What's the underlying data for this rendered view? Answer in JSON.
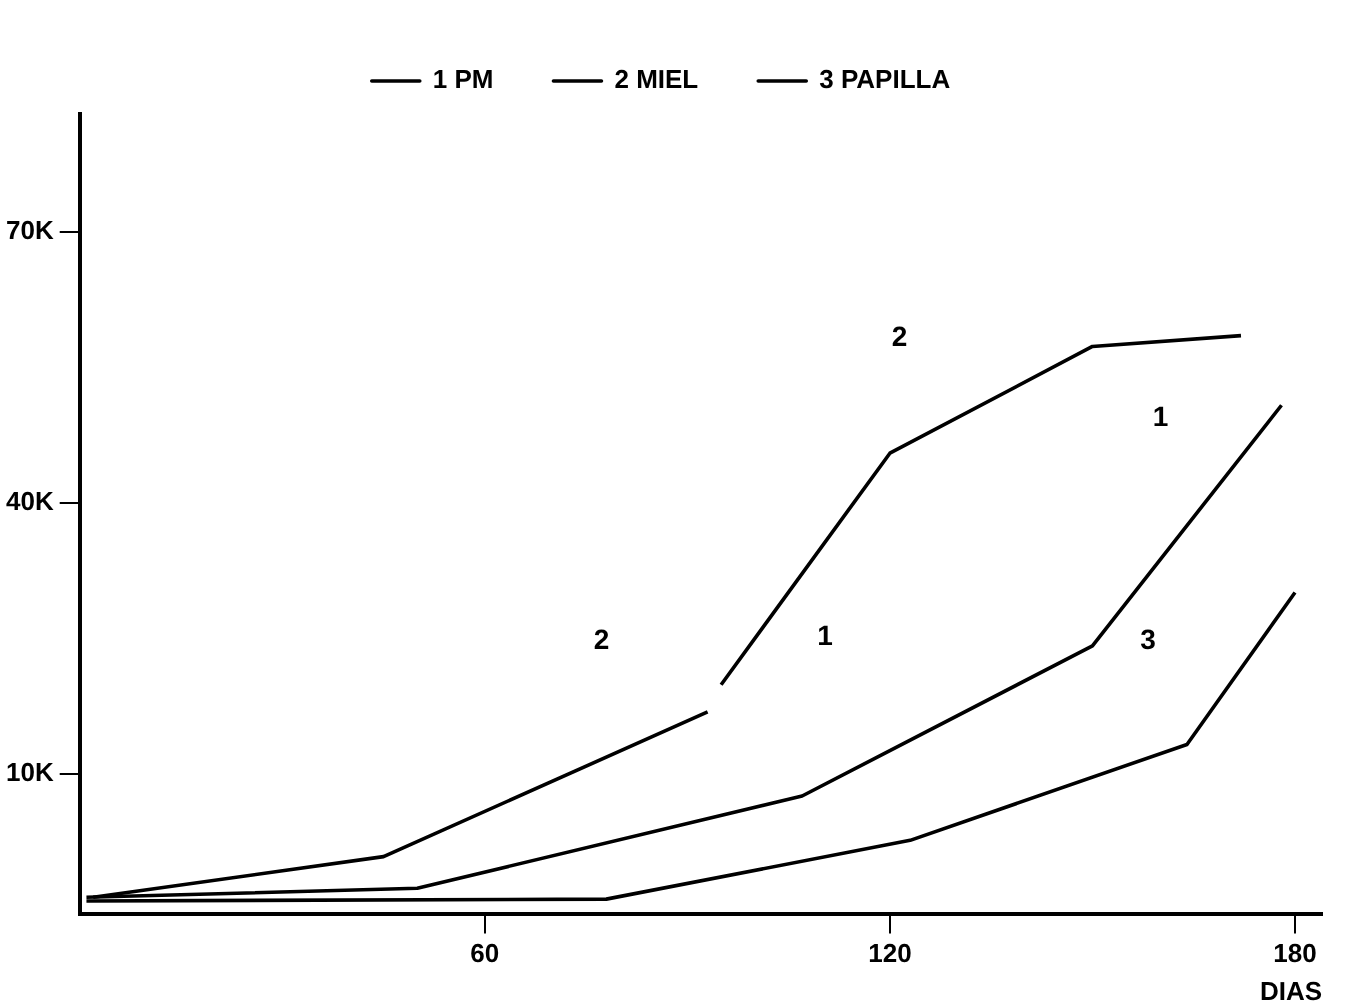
{
  "chart_data": {
    "type": "line",
    "xlabel": "DIAS",
    "xlim": [
      0,
      184
    ],
    "xticks": [
      60,
      120,
      180
    ],
    "ylim": [
      -5400,
      83000
    ],
    "yticks": [
      {
        "value": 10000,
        "label": "10K"
      },
      {
        "value": 40000,
        "label": "40K"
      },
      {
        "value": 70000,
        "label": "70K"
      }
    ],
    "series": [
      {
        "name": "1 PM",
        "color": "#000000",
        "x": [
          1,
          50,
          107,
          150,
          178
        ],
        "values": [
          -3600,
          -2600,
          7600,
          24200,
          50800
        ]
      },
      {
        "name": "2 MIEL",
        "color": "#000000",
        "x": [
          2,
          45,
          93,
          94,
          95,
          120,
          150,
          172
        ],
        "values": [
          -3600,
          900,
          16900,
          null,
          19900,
          45500,
          57300,
          58500
        ]
      },
      {
        "name": "3 PAPILLA",
        "color": "#000000",
        "x": [
          1,
          78,
          123,
          164,
          180
        ],
        "values": [
          -4000,
          -3800,
          2700,
          13300,
          30100
        ]
      }
    ],
    "annotations": [
      "2",
      "2",
      "1",
      "1",
      "3"
    ],
    "legend": "top",
    "grid": false,
    "marker": "none",
    "line_style": "solid"
  }
}
